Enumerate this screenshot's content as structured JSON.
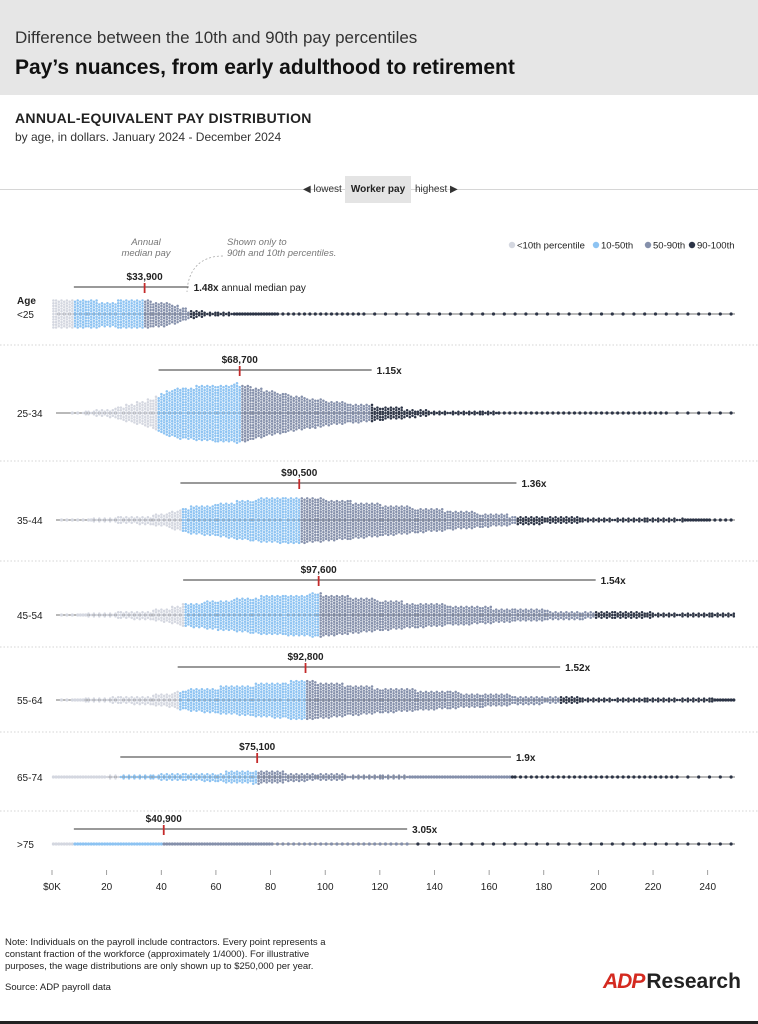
{
  "header": {
    "kicker": "Difference between the 10th and 90th pay percentiles",
    "headline": "Pay’s nuances, from early adulthood to retirement"
  },
  "subhead": {
    "title": "ANNUAL-EQUIVALENT PAY DISTRIBUTION",
    "subtitle": "by age, in dollars. January 2024 - December 2024"
  },
  "toggle": {
    "left": "◀ lowest",
    "active": "Worker pay",
    "right": "highest ▶"
  },
  "annotations": {
    "median": "Annual\nmedian pay",
    "percentiles": "Shown only to\n90th and 10th percentiles."
  },
  "footer": {
    "note": "Note: Individuals on the payroll include contractors. Every point represents a constant fraction of the workforce (approximately 1/4000). For illustrative purposes, the wage distributions are only shown up to $250,000 per year.",
    "source": "Source: ADP payroll data",
    "logo_mark": "ADP",
    "logo_word": "Research"
  },
  "chart_data": {
    "type": "beeswarm",
    "title": "ANNUAL-EQUIVALENT PAY DISTRIBUTION",
    "xlabel": "",
    "ylabel": "Age",
    "xunit": "thousands of dollars",
    "xlim": [
      0,
      250
    ],
    "xticks": [
      0,
      20,
      40,
      60,
      80,
      100,
      120,
      140,
      160,
      180,
      200,
      220,
      240
    ],
    "xtick_labels": [
      "$0K",
      "20",
      "40",
      "60",
      "80",
      "100",
      "120",
      "140",
      "160",
      "180",
      "200",
      "220",
      "240"
    ],
    "legend": [
      {
        "label": "<10th percentile",
        "color": "#d4d7e0"
      },
      {
        "label": "10-50th",
        "color": "#8dc3f2"
      },
      {
        "label": "50-90th",
        "color": "#8590ab"
      },
      {
        "label": "90-100th",
        "color": "#2c3446"
      }
    ],
    "groups": [
      {
        "label": "<25",
        "median": 33.9,
        "median_label": "$33,900",
        "p10": 8,
        "p90": 50,
        "ratio_label": "1.48x",
        "ratio_suffix": " annual median pay",
        "density": [
          [
            8,
            1
          ],
          [
            20,
            0.95
          ],
          [
            34,
            1
          ],
          [
            42,
            0.9
          ],
          [
            50,
            0.35
          ],
          [
            60,
            0.12
          ],
          [
            90,
            0.03
          ],
          [
            140,
            0.01
          ]
        ],
        "max_half_height": 14
      },
      {
        "label": "25-34",
        "median": 68.7,
        "median_label": "$68,700",
        "p10": 39,
        "p90": 117,
        "ratio_label": "1.15x",
        "ratio_suffix": "",
        "density": [
          [
            5,
            0
          ],
          [
            20,
            0.12
          ],
          [
            35,
            0.45
          ],
          [
            45,
            0.85
          ],
          [
            68,
            1
          ],
          [
            85,
            0.65
          ],
          [
            105,
            0.38
          ],
          [
            120,
            0.25
          ],
          [
            140,
            0.08
          ],
          [
            175,
            0.03
          ],
          [
            250,
            0.015
          ]
        ],
        "max_half_height": 30
      },
      {
        "label": "35-44",
        "median": 90.5,
        "median_label": "$90,500",
        "p10": 47,
        "p90": 170,
        "ratio_label": "1.36x",
        "ratio_suffix": "",
        "density": [
          [
            0,
            0
          ],
          [
            20,
            0.08
          ],
          [
            40,
            0.25
          ],
          [
            50,
            0.55
          ],
          [
            75,
            0.9
          ],
          [
            90,
            1
          ],
          [
            120,
            0.68
          ],
          [
            150,
            0.38
          ],
          [
            170,
            0.2
          ],
          [
            200,
            0.09
          ],
          [
            250,
            0.04
          ]
        ],
        "max_half_height": 24
      },
      {
        "label": "45-54",
        "median": 97.6,
        "median_label": "$97,600",
        "p10": 48,
        "p90": 199,
        "ratio_label": "1.54x",
        "ratio_suffix": "",
        "density": [
          [
            0,
            0
          ],
          [
            20,
            0.1
          ],
          [
            40,
            0.28
          ],
          [
            50,
            0.55
          ],
          [
            78,
            0.88
          ],
          [
            97,
            1
          ],
          [
            130,
            0.6
          ],
          [
            170,
            0.3
          ],
          [
            200,
            0.16
          ],
          [
            250,
            0.07
          ]
        ],
        "max_half_height": 22
      },
      {
        "label": "55-64",
        "median": 92.8,
        "median_label": "$92,800",
        "p10": 46,
        "p90": 186,
        "ratio_label": "1.52x",
        "ratio_suffix": "",
        "density": [
          [
            0,
            0
          ],
          [
            20,
            0.12
          ],
          [
            40,
            0.3
          ],
          [
            50,
            0.55
          ],
          [
            80,
            0.88
          ],
          [
            92,
            1
          ],
          [
            120,
            0.65
          ],
          [
            160,
            0.32
          ],
          [
            190,
            0.14
          ],
          [
            250,
            0.06
          ]
        ],
        "max_half_height": 20
      },
      {
        "label": "65-74",
        "median": 75.1,
        "median_label": "$75,100",
        "p10": 25,
        "p90": 168,
        "ratio_label": "1.9x",
        "ratio_suffix": "",
        "density": [
          [
            0,
            0.05
          ],
          [
            20,
            0.2
          ],
          [
            50,
            0.5
          ],
          [
            75,
            1
          ],
          [
            100,
            0.45
          ],
          [
            130,
            0.2
          ],
          [
            170,
            0.05
          ],
          [
            250,
            0.01
          ]
        ],
        "max_half_height": 7
      },
      {
        "label": ">75",
        "median": 40.9,
        "median_label": "$40,900",
        "p10": 8,
        "p90": 130,
        "ratio_label": "3.05x",
        "ratio_suffix": "",
        "density": [
          [
            0,
            0.2
          ],
          [
            40,
            0.2
          ],
          [
            80,
            0.05
          ],
          [
            130,
            0.02
          ],
          [
            250,
            0.005
          ]
        ],
        "max_half_height": 2
      }
    ]
  }
}
